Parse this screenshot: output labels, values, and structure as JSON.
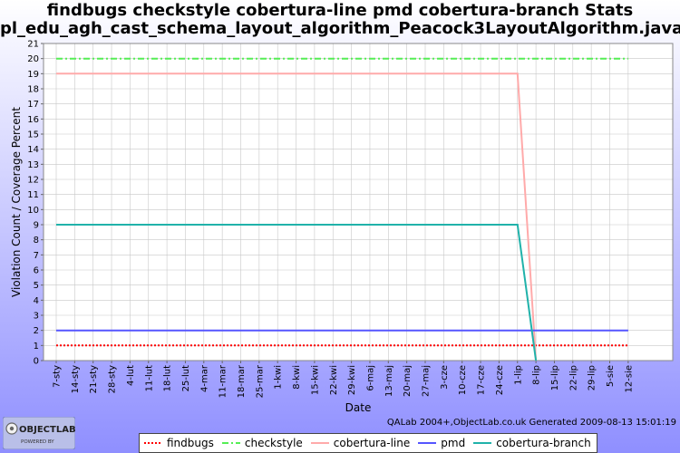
{
  "title_line1": "findbugs checkstyle cobertura-line pmd cobertura-branch  Stats",
  "title_line2": "pl_edu_agh_cast_schema_layout_algorithm_Peacock3LayoutAlgorithm.java",
  "footer_credit": "QALab 2004+,ObjectLab.co.uk Generated 2009-08-13 15:01:19",
  "logo": {
    "text_main": "OBJECTLAB",
    "text_sub": "POWERED BY"
  },
  "colors": {
    "background_top": "#ffffff",
    "background_bottom": "#8f8fff",
    "plot_background": "#ffffff",
    "grid": "#c8c8c8"
  },
  "chart_data": {
    "type": "line",
    "xlabel": "Date",
    "ylabel": "Violation Count / Coverage Percent",
    "ylim": [
      0,
      21
    ],
    "yticks": [
      0,
      1,
      2,
      3,
      4,
      5,
      6,
      7,
      8,
      9,
      10,
      11,
      12,
      13,
      14,
      15,
      16,
      17,
      18,
      19,
      20,
      21
    ],
    "grid": true,
    "legend_position": "bottom",
    "categories": [
      "7-sty",
      "14-sty",
      "21-sty",
      "28-sty",
      "4-lut",
      "11-lut",
      "18-lut",
      "25-lut",
      "4-mar",
      "11-mar",
      "18-mar",
      "25-mar",
      "1-kwi",
      "8-kwi",
      "15-kwi",
      "22-kwi",
      "29-kwi",
      "6-maj",
      "13-maj",
      "20-maj",
      "27-maj",
      "3-cze",
      "10-cze",
      "17-cze",
      "24-cze",
      "1-lip",
      "8-lip",
      "15-lip",
      "22-lip",
      "29-lip",
      "5-sie",
      "12-sie"
    ],
    "series": [
      {
        "name": "findbugs",
        "color": "#ff0000",
        "style": "dotted",
        "values": [
          1,
          1,
          1,
          1,
          1,
          1,
          1,
          1,
          1,
          1,
          1,
          1,
          1,
          1,
          1,
          1,
          1,
          1,
          1,
          1,
          1,
          1,
          1,
          1,
          1,
          1,
          1,
          1,
          1,
          1,
          1,
          1
        ]
      },
      {
        "name": "checkstyle",
        "color": "#55ee55",
        "style": "dashdot",
        "values": [
          20,
          20,
          20,
          20,
          20,
          20,
          20,
          20,
          20,
          20,
          20,
          20,
          20,
          20,
          20,
          20,
          20,
          20,
          20,
          20,
          20,
          20,
          20,
          20,
          20,
          20,
          20,
          20,
          20,
          20,
          20,
          20
        ]
      },
      {
        "name": "cobertura-line",
        "color": "#ffaaaa",
        "style": "solid",
        "values": [
          19,
          19,
          19,
          19,
          19,
          19,
          19,
          19,
          19,
          19,
          19,
          19,
          19,
          19,
          19,
          19,
          19,
          19,
          19,
          19,
          19,
          19,
          19,
          19,
          19,
          19,
          0,
          null,
          null,
          null,
          null,
          null
        ]
      },
      {
        "name": "pmd",
        "color": "#5555ff",
        "style": "solid",
        "values": [
          2,
          2,
          2,
          2,
          2,
          2,
          2,
          2,
          2,
          2,
          2,
          2,
          2,
          2,
          2,
          2,
          2,
          2,
          2,
          2,
          2,
          2,
          2,
          2,
          2,
          2,
          2,
          2,
          2,
          2,
          2,
          2
        ]
      },
      {
        "name": "cobertura-branch",
        "color": "#20b2aa",
        "style": "solid",
        "values": [
          9,
          9,
          9,
          9,
          9,
          9,
          9,
          9,
          9,
          9,
          9,
          9,
          9,
          9,
          9,
          9,
          9,
          9,
          9,
          9,
          9,
          9,
          9,
          9,
          9,
          9,
          0,
          null,
          null,
          null,
          null,
          null
        ]
      }
    ]
  }
}
